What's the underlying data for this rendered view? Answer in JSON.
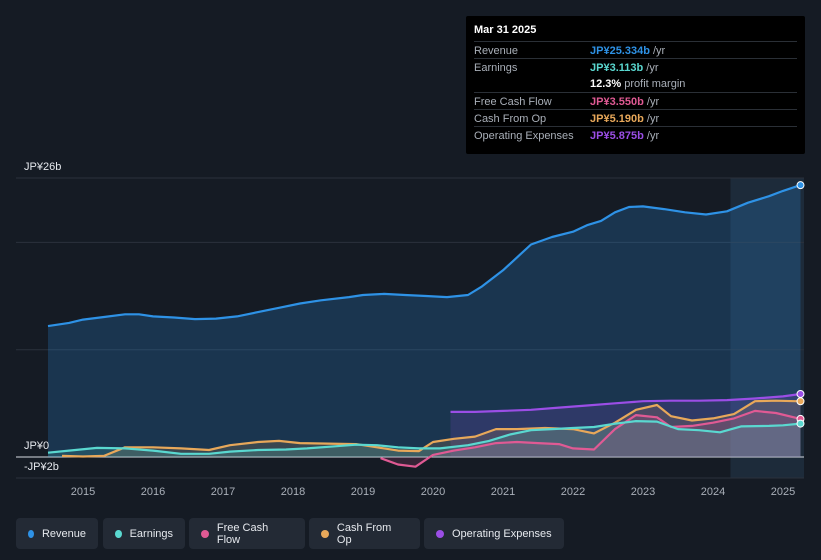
{
  "tooltip": {
    "date": "Mar 31 2025",
    "revenue_label": "Revenue",
    "revenue_value": "JP¥25.334b",
    "revenue_unit": " /yr",
    "earnings_label": "Earnings",
    "earnings_value": "JP¥3.113b",
    "earnings_unit": " /yr",
    "margin_value": "12.3%",
    "margin_label": " profit margin",
    "fcf_label": "Free Cash Flow",
    "fcf_value": "JP¥3.550b",
    "fcf_unit": " /yr",
    "cfo_label": "Cash From Op",
    "cfo_value": "JP¥5.190b",
    "cfo_unit": " /yr",
    "opex_label": "Operating Expenses",
    "opex_value": "JP¥5.875b",
    "opex_unit": " /yr"
  },
  "legend": {
    "revenue": "Revenue",
    "earnings": "Earnings",
    "fcf": "Free Cash Flow",
    "cfo": "Cash From Op",
    "opex": "Operating Expenses"
  },
  "chart_data": {
    "type": "line",
    "title": "",
    "ylabels": {
      "top": "JP¥26b",
      "zero": "JP¥0",
      "bottom": "-JP¥2b"
    },
    "ylim": [
      -2,
      26
    ],
    "xlim": [
      2014.5,
      2025.3
    ],
    "xticks": [
      "2015",
      "2016",
      "2017",
      "2018",
      "2019",
      "2020",
      "2021",
      "2022",
      "2023",
      "2024",
      "2025"
    ],
    "highlight_start": 2024.25,
    "series": [
      {
        "name": "Revenue",
        "color": "#2e92e6",
        "points": [
          [
            2014.5,
            12.2
          ],
          [
            2014.8,
            12.5
          ],
          [
            2015.0,
            12.8
          ],
          [
            2015.3,
            13.05
          ],
          [
            2015.6,
            13.3
          ],
          [
            2015.8,
            13.3
          ],
          [
            2016.0,
            13.1
          ],
          [
            2016.3,
            13.0
          ],
          [
            2016.6,
            12.85
          ],
          [
            2016.9,
            12.9
          ],
          [
            2017.2,
            13.1
          ],
          [
            2017.5,
            13.5
          ],
          [
            2017.8,
            13.9
          ],
          [
            2018.1,
            14.3
          ],
          [
            2018.4,
            14.6
          ],
          [
            2018.8,
            14.9
          ],
          [
            2019.0,
            15.1
          ],
          [
            2019.3,
            15.2
          ],
          [
            2019.6,
            15.1
          ],
          [
            2019.9,
            15.0
          ],
          [
            2020.2,
            14.9
          ],
          [
            2020.5,
            15.1
          ],
          [
            2020.7,
            15.9
          ],
          [
            2021.0,
            17.4
          ],
          [
            2021.2,
            18.6
          ],
          [
            2021.4,
            19.8
          ],
          [
            2021.7,
            20.5
          ],
          [
            2022.0,
            21.0
          ],
          [
            2022.2,
            21.6
          ],
          [
            2022.4,
            22.0
          ],
          [
            2022.6,
            22.8
          ],
          [
            2022.8,
            23.3
          ],
          [
            2023.0,
            23.35
          ],
          [
            2023.3,
            23.1
          ],
          [
            2023.6,
            22.8
          ],
          [
            2023.9,
            22.6
          ],
          [
            2024.2,
            22.9
          ],
          [
            2024.5,
            23.7
          ],
          [
            2024.8,
            24.3
          ],
          [
            2025.0,
            24.8
          ],
          [
            2025.25,
            25.334
          ]
        ]
      },
      {
        "name": "Earnings",
        "color": "#5ad8d0",
        "points": [
          [
            2014.5,
            0.4
          ],
          [
            2014.8,
            0.6
          ],
          [
            2015.2,
            0.85
          ],
          [
            2015.6,
            0.8
          ],
          [
            2016.0,
            0.6
          ],
          [
            2016.4,
            0.3
          ],
          [
            2016.8,
            0.3
          ],
          [
            2017.1,
            0.5
          ],
          [
            2017.5,
            0.65
          ],
          [
            2017.9,
            0.7
          ],
          [
            2018.2,
            0.8
          ],
          [
            2018.6,
            1.0
          ],
          [
            2018.9,
            1.15
          ],
          [
            2019.2,
            1.1
          ],
          [
            2019.5,
            0.9
          ],
          [
            2019.8,
            0.8
          ],
          [
            2020.1,
            0.8
          ],
          [
            2020.5,
            1.1
          ],
          [
            2020.8,
            1.5
          ],
          [
            2021.1,
            2.1
          ],
          [
            2021.4,
            2.5
          ],
          [
            2021.7,
            2.6
          ],
          [
            2022.0,
            2.7
          ],
          [
            2022.3,
            2.8
          ],
          [
            2022.6,
            3.1
          ],
          [
            2022.9,
            3.35
          ],
          [
            2023.2,
            3.3
          ],
          [
            2023.5,
            2.6
          ],
          [
            2023.8,
            2.5
          ],
          [
            2024.1,
            2.3
          ],
          [
            2024.4,
            2.85
          ],
          [
            2024.8,
            2.9
          ],
          [
            2025.0,
            2.95
          ],
          [
            2025.25,
            3.113
          ]
        ]
      },
      {
        "name": "Free Cash Flow",
        "color": "#e05a94",
        "points": [
          [
            2019.25,
            -0.1
          ],
          [
            2019.5,
            -0.7
          ],
          [
            2019.75,
            -0.9
          ],
          [
            2020.0,
            0.2
          ],
          [
            2020.3,
            0.6
          ],
          [
            2020.6,
            0.9
          ],
          [
            2020.9,
            1.3
          ],
          [
            2021.2,
            1.4
          ],
          [
            2021.5,
            1.3
          ],
          [
            2021.8,
            1.2
          ],
          [
            2022.0,
            0.8
          ],
          [
            2022.3,
            0.7
          ],
          [
            2022.6,
            2.6
          ],
          [
            2022.9,
            3.9
          ],
          [
            2023.2,
            3.7
          ],
          [
            2023.4,
            2.8
          ],
          [
            2023.7,
            2.9
          ],
          [
            2024.0,
            3.2
          ],
          [
            2024.3,
            3.6
          ],
          [
            2024.6,
            4.3
          ],
          [
            2024.9,
            4.1
          ],
          [
            2025.25,
            3.55
          ]
        ]
      },
      {
        "name": "Cash From Op",
        "color": "#e8a85a",
        "points": [
          [
            2014.7,
            0.1
          ],
          [
            2015.0,
            0.05
          ],
          [
            2015.3,
            0.1
          ],
          [
            2015.6,
            0.9
          ],
          [
            2016.0,
            0.9
          ],
          [
            2016.4,
            0.8
          ],
          [
            2016.8,
            0.65
          ],
          [
            2017.1,
            1.1
          ],
          [
            2017.5,
            1.4
          ],
          [
            2017.8,
            1.5
          ],
          [
            2018.1,
            1.3
          ],
          [
            2018.5,
            1.25
          ],
          [
            2018.9,
            1.2
          ],
          [
            2019.2,
            0.9
          ],
          [
            2019.5,
            0.6
          ],
          [
            2019.8,
            0.55
          ],
          [
            2020.0,
            1.4
          ],
          [
            2020.3,
            1.7
          ],
          [
            2020.6,
            1.9
          ],
          [
            2020.9,
            2.6
          ],
          [
            2021.2,
            2.6
          ],
          [
            2021.6,
            2.7
          ],
          [
            2022.0,
            2.6
          ],
          [
            2022.3,
            2.2
          ],
          [
            2022.6,
            3.2
          ],
          [
            2022.9,
            4.4
          ],
          [
            2023.2,
            4.85
          ],
          [
            2023.4,
            3.8
          ],
          [
            2023.7,
            3.4
          ],
          [
            2024.0,
            3.6
          ],
          [
            2024.3,
            4.0
          ],
          [
            2024.6,
            5.2
          ],
          [
            2024.9,
            5.25
          ],
          [
            2025.25,
            5.19
          ]
        ]
      },
      {
        "name": "Operating Expenses",
        "color": "#9b4ee6",
        "points": [
          [
            2020.25,
            4.2
          ],
          [
            2020.6,
            4.2
          ],
          [
            2021.0,
            4.3
          ],
          [
            2021.4,
            4.4
          ],
          [
            2021.8,
            4.6
          ],
          [
            2022.2,
            4.8
          ],
          [
            2022.6,
            5.0
          ],
          [
            2023.0,
            5.2
          ],
          [
            2023.4,
            5.25
          ],
          [
            2023.8,
            5.25
          ],
          [
            2024.2,
            5.3
          ],
          [
            2024.6,
            5.45
          ],
          [
            2025.0,
            5.65
          ],
          [
            2025.25,
            5.875
          ]
        ]
      }
    ]
  }
}
